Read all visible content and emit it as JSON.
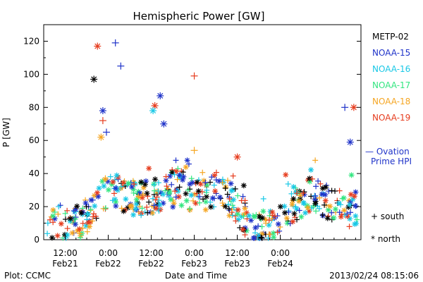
{
  "chart_data": {
    "type": "scatter",
    "title": "Hemispheric Power [GW]",
    "ylabel": "P [GW]",
    "xlabel": "Date and Time",
    "ylim": [
      0,
      130
    ],
    "y_ticks": [
      0,
      20,
      40,
      60,
      80,
      100,
      120
    ],
    "x_axis": {
      "start": "2013-02-21T06:00",
      "end": "2013-02-24T22:30",
      "ticks": [
        {
          "t": "2013-02-21T12:00",
          "top": "12:00",
          "bottom": "Feb21"
        },
        {
          "t": "2013-02-22T00:00",
          "top": "0:00",
          "bottom": "Feb22"
        },
        {
          "t": "2013-02-22T12:00",
          "top": "12:00",
          "bottom": "Feb22"
        },
        {
          "t": "2013-02-23T00:00",
          "top": "0:00",
          "bottom": "Feb23"
        },
        {
          "t": "2013-02-23T12:00",
          "top": "12:00",
          "bottom": "Feb23"
        },
        {
          "t": "2013-02-24T00:00",
          "top": "0:00",
          "bottom": "Feb24"
        }
      ]
    },
    "legend": {
      "placement": "right",
      "satellites": [
        {
          "name": "METP-02",
          "color": "#000000"
        },
        {
          "name": "NOAA-15",
          "color": "#1f33c9"
        },
        {
          "name": "NOAA-16",
          "color": "#19c8e6"
        },
        {
          "name": "NOAA-17",
          "color": "#33e680"
        },
        {
          "name": "NOAA-18",
          "color": "#f5a623"
        },
        {
          "name": "NOAA-19",
          "color": "#e63c1e"
        }
      ],
      "ovation_label_1": "— Ovation",
      "ovation_label_2": "Prime HPI",
      "ovation_color": "#1f33c9",
      "south_label": "+ south",
      "north_label": "* north"
    },
    "highlight_points": [
      {
        "series": "NOAA-19",
        "t": "2013-02-21T21:00",
        "y": 117,
        "marker": "north"
      },
      {
        "series": "METP-02",
        "t": "2013-02-21T20:00",
        "y": 97,
        "marker": "north"
      },
      {
        "series": "NOAA-15",
        "t": "2013-02-22T02:00",
        "y": 119,
        "marker": "south"
      },
      {
        "series": "NOAA-15",
        "t": "2013-02-22T03:30",
        "y": 105,
        "marker": "south"
      },
      {
        "series": "NOAA-15",
        "t": "2013-02-21T22:30",
        "y": 78,
        "marker": "north"
      },
      {
        "series": "NOAA-19",
        "t": "2013-02-21T22:30",
        "y": 72,
        "marker": "south"
      },
      {
        "series": "NOAA-15",
        "t": "2013-02-21T23:30",
        "y": 65,
        "marker": "south"
      },
      {
        "series": "NOAA-18",
        "t": "2013-02-21T22:00",
        "y": 62,
        "marker": "north"
      },
      {
        "series": "NOAA-15",
        "t": "2013-02-22T14:30",
        "y": 87,
        "marker": "north"
      },
      {
        "series": "NOAA-19",
        "t": "2013-02-22T13:00",
        "y": 81,
        "marker": "north"
      },
      {
        "series": "NOAA-16",
        "t": "2013-02-22T12:30",
        "y": 78,
        "marker": "north"
      },
      {
        "series": "NOAA-15",
        "t": "2013-02-22T15:30",
        "y": 70,
        "marker": "north"
      },
      {
        "series": "NOAA-19",
        "t": "2013-02-23T00:00",
        "y": 99,
        "marker": "south"
      },
      {
        "series": "NOAA-18",
        "t": "2013-02-23T00:00",
        "y": 54,
        "marker": "south"
      },
      {
        "series": "NOAA-15",
        "t": "2013-02-24T18:00",
        "y": 80,
        "marker": "south"
      },
      {
        "series": "NOAA-19",
        "t": "2013-02-24T20:30",
        "y": 80,
        "marker": "north"
      },
      {
        "series": "NOAA-15",
        "t": "2013-02-24T19:30",
        "y": 59,
        "marker": "north"
      },
      {
        "series": "NOAA-19",
        "t": "2013-02-23T12:00",
        "y": 50,
        "marker": "north"
      }
    ]
  },
  "footer": {
    "plot_credit": "Plot: CCMC",
    "timestamp": "2013/02/24 08:15:06"
  }
}
